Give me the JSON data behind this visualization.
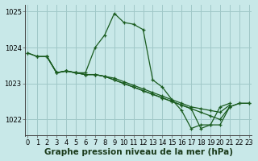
{
  "title": "Graphe pression niveau de la mer (hPa)",
  "bg_color": "#c8e8e8",
  "grid_color": "#a0c8c8",
  "line_color": "#1a5c20",
  "marker": "+",
  "series": [
    {
      "x": [
        0,
        1,
        2,
        3,
        4,
        5,
        6,
        7,
        8,
        9,
        10,
        11,
        12,
        13,
        14,
        15,
        16,
        17,
        18,
        19,
        20,
        21,
        22,
        23
      ],
      "y": [
        1023.85,
        1023.75,
        1023.75,
        1023.3,
        1023.35,
        1023.3,
        1023.3,
        1024.0,
        1024.35,
        1024.95,
        1024.7,
        1024.65,
        1024.5,
        1023.1,
        1022.9,
        1022.55,
        1022.25,
        1021.75,
        1021.85,
        1021.85,
        1022.35,
        1022.45,
        null,
        null
      ]
    },
    {
      "x": [
        0,
        1,
        2,
        3,
        4,
        5,
        6,
        7,
        8,
        9,
        10,
        11,
        12,
        13,
        14,
        15,
        16,
        17,
        18,
        19,
        20,
        21,
        22,
        23
      ],
      "y": [
        1023.85,
        1023.75,
        1023.75,
        1023.3,
        1023.35,
        1023.3,
        1023.25,
        1023.25,
        1023.2,
        1023.15,
        1023.05,
        1022.95,
        1022.85,
        1022.75,
        1022.65,
        1022.55,
        1022.45,
        1022.35,
        1022.3,
        1022.25,
        1022.2,
        1022.4,
        null,
        null
      ]
    },
    {
      "x": [
        2,
        3,
        4,
        5,
        6,
        7,
        8,
        9,
        10,
        11,
        12,
        13,
        14,
        15,
        16,
        17,
        18,
        19,
        20,
        21,
        22,
        23
      ],
      "y": [
        1023.75,
        1023.3,
        1023.35,
        1023.3,
        1023.25,
        1023.25,
        1023.2,
        1023.1,
        1023.0,
        1022.9,
        1022.8,
        1022.7,
        1022.6,
        1022.5,
        1022.4,
        1022.3,
        1021.75,
        1021.85,
        1021.85,
        1022.35,
        1022.45,
        1022.45
      ]
    },
    {
      "x": [
        1,
        2,
        3,
        4,
        5,
        6,
        7,
        8,
        9,
        10,
        11,
        12,
        13,
        14,
        15,
        16,
        17,
        18,
        19,
        20,
        21,
        22,
        23
      ],
      "y": [
        1023.75,
        1023.75,
        1023.3,
        1023.35,
        1023.3,
        1023.25,
        1023.25,
        1023.2,
        1023.1,
        1023.0,
        1022.9,
        1022.8,
        1022.7,
        1022.6,
        1022.5,
        1022.4,
        1022.3,
        1022.2,
        1022.1,
        1022.0,
        1022.35,
        1022.45,
        1022.45
      ]
    }
  ],
  "xlim": [
    -0.3,
    23.3
  ],
  "ylim": [
    1021.55,
    1025.2
  ],
  "yticks": [
    1022,
    1023,
    1024,
    1025
  ],
  "xticks": [
    0,
    1,
    2,
    3,
    4,
    5,
    6,
    7,
    8,
    9,
    10,
    11,
    12,
    13,
    14,
    15,
    16,
    17,
    18,
    19,
    20,
    21,
    22,
    23
  ],
  "tick_fontsize": 6.0,
  "title_fontsize": 7.5,
  "linewidth": 0.9,
  "markersize": 3.0,
  "figsize": [
    3.2,
    2.0
  ],
  "dpi": 100
}
